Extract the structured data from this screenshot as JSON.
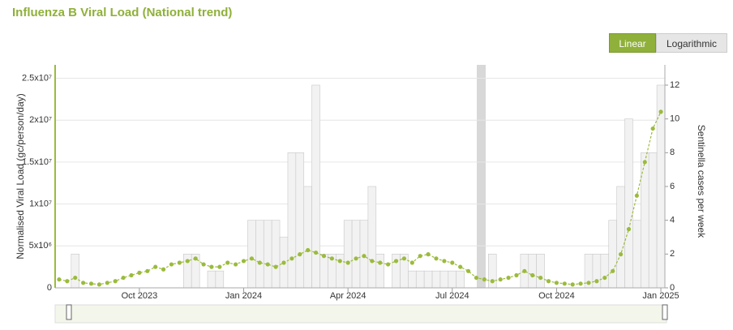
{
  "chart_data": {
    "type": "scatter",
    "title": "Influenza B Viral Load (National trend)",
    "scale_options": [
      "Linear",
      "Logarithmic"
    ],
    "active_scale": "Linear",
    "y_label": "Normalised Viral Load (gc/person/day)",
    "y2_label": "Sentinella cases per week",
    "categories": [
      null,
      null,
      null,
      null,
      null,
      null,
      null,
      null,
      null,
      null,
      "Oct 2023",
      null,
      null,
      null,
      null,
      null,
      null,
      null,
      null,
      null,
      null,
      null,
      null,
      "Jan 2024",
      null,
      null,
      null,
      null,
      null,
      null,
      null,
      null,
      null,
      null,
      null,
      null,
      "Apr 2024",
      null,
      null,
      null,
      null,
      null,
      null,
      null,
      null,
      null,
      null,
      null,
      null,
      "Jul 2024",
      null,
      null,
      null,
      null,
      null,
      null,
      null,
      null,
      null,
      null,
      null,
      null,
      "Oct 2024",
      null,
      null,
      null,
      null,
      null,
      null,
      null,
      null,
      null,
      null,
      null,
      null,
      "Jan 2025"
    ],
    "ylim": [
      0,
      26600000
    ],
    "yticks": [
      0,
      {
        "value": 5000000,
        "label": "5x10⁶"
      },
      {
        "value": 10000000,
        "label": "1x10⁷"
      },
      {
        "value": 15000000,
        "label": "1.5x10⁷"
      },
      {
        "value": 20000000,
        "label": "2x10⁷"
      },
      {
        "value": 25000000,
        "label": "2.5x10⁷"
      }
    ],
    "y2lim": [
      0,
      13.2
    ],
    "y2ticks": [
      0,
      2,
      4,
      6,
      8,
      10,
      12
    ],
    "grid": true,
    "series": [
      {
        "name": "Sentinella cases per week",
        "axis": "y2",
        "color": "#f2f2f2",
        "values": [
          0,
          0,
          2,
          0,
          0,
          0,
          0,
          0,
          0,
          0,
          0,
          0,
          0,
          0,
          0,
          0,
          2,
          2,
          0,
          1,
          1,
          0,
          0,
          0,
          4,
          4,
          4,
          4,
          3,
          8,
          8,
          6,
          12,
          2,
          2,
          2,
          4,
          4,
          4,
          6,
          2,
          0,
          2,
          2,
          1,
          1,
          1,
          1,
          1,
          1,
          1,
          0,
          0,
          0,
          2,
          0,
          0,
          0,
          2,
          2,
          2,
          0,
          0,
          0,
          0,
          0,
          2,
          2,
          2,
          4,
          6,
          10,
          4,
          8,
          8,
          12
        ]
      },
      {
        "name": "Viral load",
        "axis": "y",
        "color": "#9bbb3c",
        "values": [
          1000000,
          800000,
          1200000,
          600000,
          500000,
          400000,
          600000,
          800000,
          1200000,
          1500000,
          1800000,
          2000000,
          2500000,
          2200000,
          2800000,
          3000000,
          3200000,
          3500000,
          2800000,
          2500000,
          2500000,
          3000000,
          2800000,
          3200000,
          3500000,
          3000000,
          2800000,
          2500000,
          3000000,
          3500000,
          4000000,
          4500000,
          4200000,
          3800000,
          3500000,
          3200000,
          3000000,
          3500000,
          3800000,
          3200000,
          3000000,
          2800000,
          3200000,
          3500000,
          3000000,
          3800000,
          4000000,
          3500000,
          3200000,
          3000000,
          2500000,
          2000000,
          1200000,
          1000000,
          800000,
          1000000,
          1200000,
          1500000,
          2000000,
          1500000,
          1200000,
          800000,
          600000,
          500000,
          400000,
          500000,
          600000,
          800000,
          1200000,
          2000000,
          4000000,
          7000000,
          11000000,
          15000000,
          19000000,
          21000000
        ]
      }
    ]
  }
}
